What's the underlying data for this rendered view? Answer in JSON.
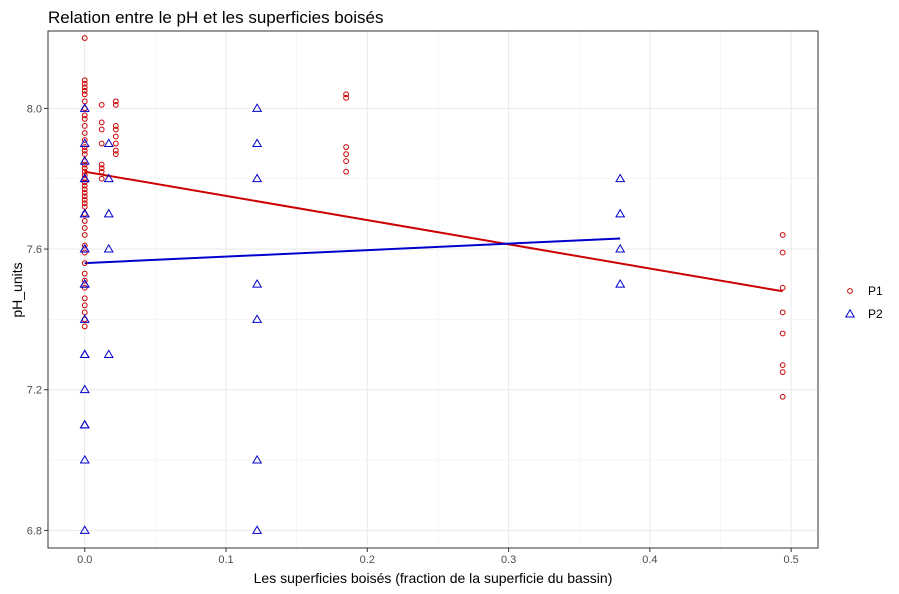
{
  "chart_data": {
    "type": "scatter",
    "title": "Relation entre le pH et les superficies boisés",
    "xlabel": "Les superficies boisés (fraction de la superficie du bassin)",
    "ylabel": "pH_units",
    "xlim": [
      -0.026,
      0.519
    ],
    "ylim": [
      6.75,
      8.22
    ],
    "x_ticks": [
      0.0,
      0.1,
      0.2,
      0.3,
      0.4,
      0.5
    ],
    "x_tick_labels": [
      "0.0",
      "0.1",
      "0.2",
      "0.3",
      "0.4",
      "0.5"
    ],
    "y_ticks": [
      6.8,
      7.2,
      7.6,
      8.0
    ],
    "y_tick_labels": [
      "6.8",
      "7.2",
      "7.6",
      "8.0"
    ],
    "grid": true,
    "legend_position": "right",
    "series": [
      {
        "name": "P1",
        "marker": "circle",
        "color": "#cc0000",
        "points": [
          [
            0,
            8.2
          ],
          [
            0,
            8.08
          ],
          [
            0,
            8.07
          ],
          [
            0,
            8.06
          ],
          [
            0,
            8.05
          ],
          [
            0,
            8.04
          ],
          [
            0,
            8.02
          ],
          [
            0,
            8.0
          ],
          [
            0,
            7.98
          ],
          [
            0,
            7.97
          ],
          [
            0,
            7.95
          ],
          [
            0,
            7.93
          ],
          [
            0,
            7.91
          ],
          [
            0,
            7.89
          ],
          [
            0,
            7.88
          ],
          [
            0,
            7.87
          ],
          [
            0,
            7.85
          ],
          [
            0,
            7.84
          ],
          [
            0,
            7.83
          ],
          [
            0,
            7.82
          ],
          [
            0,
            7.81
          ],
          [
            0,
            7.8
          ],
          [
            0,
            7.79
          ],
          [
            0,
            7.78
          ],
          [
            0,
            7.77
          ],
          [
            0,
            7.76
          ],
          [
            0,
            7.75
          ],
          [
            0,
            7.74
          ],
          [
            0,
            7.73
          ],
          [
            0,
            7.72
          ],
          [
            0,
            7.7
          ],
          [
            0,
            7.68
          ],
          [
            0,
            7.66
          ],
          [
            0,
            7.64
          ],
          [
            0,
            7.61
          ],
          [
            0,
            7.59
          ],
          [
            0,
            7.56
          ],
          [
            0,
            7.53
          ],
          [
            0,
            7.51
          ],
          [
            0,
            7.49
          ],
          [
            0,
            7.46
          ],
          [
            0,
            7.44
          ],
          [
            0,
            7.42
          ],
          [
            0,
            7.4
          ],
          [
            0,
            7.38
          ],
          [
            0.012,
            8.01
          ],
          [
            0.012,
            7.96
          ],
          [
            0.012,
            7.94
          ],
          [
            0.012,
            7.9
          ],
          [
            0.012,
            7.84
          ],
          [
            0.012,
            7.83
          ],
          [
            0.012,
            7.82
          ],
          [
            0.012,
            7.8
          ],
          [
            0.022,
            8.02
          ],
          [
            0.022,
            8.01
          ],
          [
            0.022,
            7.95
          ],
          [
            0.022,
            7.94
          ],
          [
            0.022,
            7.92
          ],
          [
            0.022,
            7.9
          ],
          [
            0.022,
            7.88
          ],
          [
            0.022,
            7.87
          ],
          [
            0.185,
            8.04
          ],
          [
            0.185,
            8.03
          ],
          [
            0.185,
            7.89
          ],
          [
            0.185,
            7.87
          ],
          [
            0.185,
            7.85
          ],
          [
            0.185,
            7.82
          ],
          [
            0.494,
            7.64
          ],
          [
            0.494,
            7.59
          ],
          [
            0.494,
            7.49
          ],
          [
            0.494,
            7.42
          ],
          [
            0.494,
            7.36
          ],
          [
            0.494,
            7.27
          ],
          [
            0.494,
            7.25
          ],
          [
            0.494,
            7.18
          ]
        ],
        "trend": [
          [
            0,
            7.82
          ],
          [
            0.494,
            7.48
          ]
        ]
      },
      {
        "name": "P2",
        "marker": "triangle",
        "color": "#0000cc",
        "points": [
          [
            0,
            8.0
          ],
          [
            0,
            7.9
          ],
          [
            0,
            7.85
          ],
          [
            0,
            7.8
          ],
          [
            0,
            7.8
          ],
          [
            0,
            7.7
          ],
          [
            0,
            7.7
          ],
          [
            0,
            7.6
          ],
          [
            0,
            7.6
          ],
          [
            0,
            7.5
          ],
          [
            0,
            7.5
          ],
          [
            0,
            7.4
          ],
          [
            0,
            7.3
          ],
          [
            0,
            7.3
          ],
          [
            0,
            7.2
          ],
          [
            0,
            7.1
          ],
          [
            0,
            7.1
          ],
          [
            0,
            7.0
          ],
          [
            0,
            6.8
          ],
          [
            0.017,
            7.9
          ],
          [
            0.017,
            7.8
          ],
          [
            0.017,
            7.7
          ],
          [
            0.017,
            7.6
          ],
          [
            0.017,
            7.3
          ],
          [
            0.122,
            8.0
          ],
          [
            0.122,
            7.9
          ],
          [
            0.122,
            7.8
          ],
          [
            0.122,
            7.5
          ],
          [
            0.122,
            7.4
          ],
          [
            0.122,
            7.0
          ],
          [
            0.122,
            6.8
          ],
          [
            0.379,
            7.8
          ],
          [
            0.379,
            7.7
          ],
          [
            0.379,
            7.6
          ],
          [
            0.379,
            7.5
          ]
        ],
        "trend": [
          [
            0,
            7.56
          ],
          [
            0.379,
            7.63
          ]
        ]
      }
    ]
  }
}
